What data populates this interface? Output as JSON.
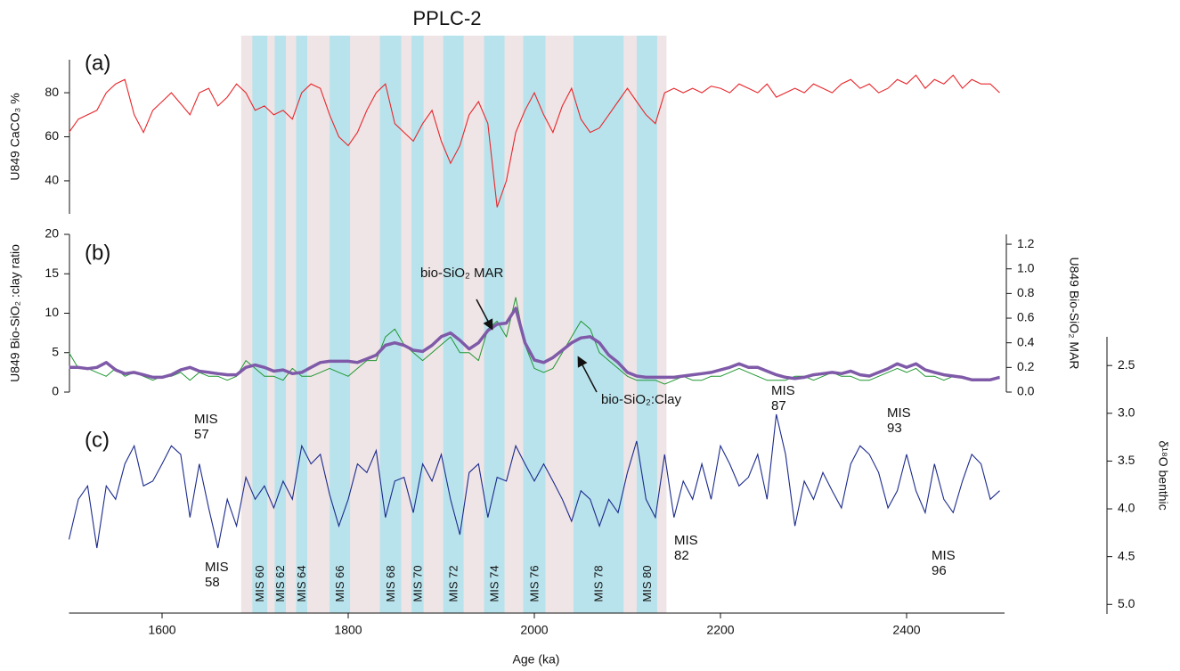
{
  "chart_data": {
    "type": "line",
    "title": "PPLC-2",
    "xlabel": "Age (ka)",
    "xlim": [
      1500,
      2500
    ],
    "xticks": [
      1600,
      1800,
      2000,
      2200,
      2400
    ],
    "x": [
      1500,
      1510,
      1520,
      1530,
      1540,
      1550,
      1560,
      1570,
      1580,
      1590,
      1600,
      1610,
      1620,
      1630,
      1640,
      1650,
      1660,
      1670,
      1680,
      1690,
      1700,
      1710,
      1720,
      1730,
      1740,
      1750,
      1760,
      1770,
      1780,
      1790,
      1800,
      1810,
      1820,
      1830,
      1840,
      1850,
      1860,
      1870,
      1880,
      1890,
      1900,
      1910,
      1920,
      1930,
      1940,
      1950,
      1960,
      1970,
      1980,
      1990,
      2000,
      2010,
      2020,
      2030,
      2040,
      2050,
      2060,
      2070,
      2080,
      2090,
      2100,
      2110,
      2120,
      2130,
      2140,
      2150,
      2160,
      2170,
      2180,
      2190,
      2200,
      2210,
      2220,
      2230,
      2240,
      2250,
      2260,
      2270,
      2280,
      2290,
      2300,
      2310,
      2320,
      2330,
      2340,
      2350,
      2360,
      2370,
      2380,
      2390,
      2400,
      2410,
      2420,
      2430,
      2440,
      2450,
      2460,
      2470,
      2480,
      2490,
      2500
    ],
    "shading": {
      "pplc": [
        1685,
        2142
      ],
      "pplc_color": "#efe5e6",
      "glacial_color": "#b9e3ec",
      "glacial": [
        [
          1697,
          1713
        ],
        [
          1721,
          1733
        ],
        [
          1744,
          1756
        ],
        [
          1780,
          1802
        ],
        [
          1834,
          1857
        ],
        [
          1868,
          1881
        ],
        [
          1902,
          1924
        ],
        [
          1946,
          1968
        ],
        [
          1988,
          2012
        ],
        [
          2042,
          2096
        ],
        [
          2110,
          2132
        ]
      ],
      "glacial_labels": [
        "MIS 60",
        "MIS 62",
        "MIS 64",
        "MIS 66",
        "MIS 68",
        "MIS 70",
        "MIS 72",
        "MIS 74",
        "MIS 76",
        "MIS 78",
        "MIS 80"
      ]
    },
    "panels": [
      {
        "label": "(a)",
        "ylabel": "U849 CaCO₃ %",
        "ylim": [
          25,
          95
        ],
        "yticks": [
          40,
          60,
          80
        ],
        "color": "#e8262b",
        "values": [
          62,
          68,
          70,
          72,
          80,
          84,
          86,
          70,
          62,
          72,
          76,
          80,
          75,
          70,
          80,
          82,
          74,
          78,
          84,
          80,
          72,
          74,
          70,
          72,
          68,
          80,
          84,
          82,
          70,
          60,
          56,
          62,
          72,
          80,
          84,
          66,
          62,
          58,
          66,
          72,
          58,
          48,
          56,
          70,
          76,
          66,
          28,
          40,
          62,
          72,
          80,
          70,
          62,
          74,
          82,
          68,
          62,
          64,
          70,
          76,
          82,
          76,
          70,
          66,
          80,
          82,
          80,
          82,
          80,
          83,
          82,
          80,
          84,
          82,
          80,
          84,
          78,
          80,
          82,
          80,
          84,
          82,
          80,
          84,
          86,
          82,
          84,
          80,
          82,
          86,
          84,
          88,
          82,
          86,
          84,
          88,
          82,
          86,
          84,
          84,
          80
        ]
      },
      {
        "label": "(b)",
        "ylabel": "U849 Bio-SiO₂ :clay ratio",
        "y2label": "U849 Bio-SiO₂ MAR",
        "ylim": [
          0,
          20
        ],
        "yticks": [
          0,
          5,
          10,
          15,
          20
        ],
        "y2lim": [
          0,
          1.28
        ],
        "y2ticks": [
          {
            "value": 0,
            "label": "0.0"
          },
          0.2,
          0.4,
          0.6,
          0.8,
          {
            "value": 1,
            "label": "1.0"
          },
          1.2
        ],
        "series": [
          {
            "name": "bio-SiO₂:Clay",
            "color": "#1e9630",
            "values": [
              5,
              3,
              3,
              2.5,
              2,
              3,
              2,
              2.5,
              2,
              1.5,
              2,
              2,
              2.5,
              1.5,
              2.5,
              2,
              2,
              1.5,
              2,
              4,
              3,
              2,
              2,
              1.5,
              3,
              2,
              2,
              2.5,
              3,
              2.5,
              2,
              3,
              4,
              4,
              7,
              8,
              6,
              5,
              4,
              5,
              6,
              7,
              5,
              5,
              4,
              8,
              9,
              7,
              12,
              6,
              3,
              2.5,
              3,
              5,
              7,
              9,
              8,
              5,
              4,
              3,
              2,
              1.5,
              1.5,
              1.5,
              1,
              1.5,
              2,
              1.5,
              1.5,
              2,
              2,
              2.5,
              3,
              2.5,
              2,
              1.5,
              1.5,
              1.5,
              2,
              2,
              1.5,
              2,
              2.5,
              2,
              2,
              1.5,
              1.5,
              2,
              2.5,
              3,
              2.5,
              3,
              2,
              2,
              1.5,
              2,
              2,
              1.5,
              1.5,
              1.5,
              2
            ]
          },
          {
            "name": "bio-SiO₂ MAR",
            "color": "#7f5aa8",
            "axis": "y2",
            "values": [
              0.2,
              0.2,
              0.19,
              0.2,
              0.24,
              0.18,
              0.15,
              0.16,
              0.14,
              0.12,
              0.12,
              0.14,
              0.18,
              0.2,
              0.17,
              0.16,
              0.15,
              0.14,
              0.14,
              0.2,
              0.22,
              0.2,
              0.17,
              0.18,
              0.15,
              0.16,
              0.2,
              0.24,
              0.25,
              0.25,
              0.25,
              0.24,
              0.27,
              0.3,
              0.38,
              0.4,
              0.38,
              0.34,
              0.33,
              0.38,
              0.45,
              0.48,
              0.42,
              0.35,
              0.4,
              0.5,
              0.55,
              0.56,
              0.68,
              0.4,
              0.26,
              0.24,
              0.28,
              0.34,
              0.4,
              0.44,
              0.45,
              0.4,
              0.3,
              0.24,
              0.16,
              0.13,
              0.12,
              0.12,
              0.12,
              0.12,
              0.13,
              0.14,
              0.15,
              0.16,
              0.18,
              0.2,
              0.23,
              0.2,
              0.2,
              0.17,
              0.14,
              0.12,
              0.11,
              0.12,
              0.14,
              0.15,
              0.16,
              0.15,
              0.17,
              0.14,
              0.13,
              0.16,
              0.19,
              0.23,
              0.2,
              0.23,
              0.18,
              0.16,
              0.14,
              0.13,
              0.12,
              0.1,
              0.1,
              0.1,
              0.12
            ]
          }
        ]
      },
      {
        "label": "(c)",
        "ylabel": "δ¹⁸O benthic",
        "ylim": [
          2.2,
          5.1
        ],
        "y_inverted": true,
        "yticks": [
          2.5,
          {
            "value": 3,
            "label": "3.0"
          },
          3.5,
          {
            "value": 4,
            "label": "4.0"
          },
          4.5,
          {
            "value": 5,
            "label": "5.0"
          }
        ],
        "color": "#1b2a8c",
        "values": [
          4.32,
          3.9,
          3.76,
          4.41,
          3.76,
          3.9,
          3.53,
          3.34,
          3.76,
          3.71,
          3.53,
          3.34,
          3.43,
          4.09,
          3.53,
          3.99,
          4.41,
          3.9,
          4.18,
          3.67,
          3.9,
          3.76,
          3.99,
          3.71,
          3.9,
          3.34,
          3.53,
          3.43,
          3.85,
          4.18,
          3.9,
          3.53,
          3.62,
          3.39,
          4.09,
          3.71,
          3.67,
          4.04,
          3.53,
          3.71,
          3.43,
          3.9,
          4.27,
          3.62,
          3.53,
          4.09,
          3.67,
          3.71,
          3.34,
          3.53,
          3.71,
          3.53,
          3.71,
          3.9,
          4.13,
          3.81,
          3.9,
          4.18,
          3.9,
          4.04,
          3.62,
          3.29,
          3.9,
          4.09,
          3.43,
          4.09,
          3.71,
          3.9,
          3.53,
          3.9,
          3.34,
          3.53,
          3.76,
          3.67,
          3.43,
          3.9,
          3.01,
          3.43,
          4.18,
          3.71,
          3.9,
          3.62,
          3.81,
          3.99,
          3.53,
          3.34,
          3.43,
          3.62,
          3.99,
          3.81,
          3.43,
          3.81,
          4.04,
          3.53,
          3.9,
          4.04,
          3.71,
          3.43,
          3.53,
          3.9,
          3.81
        ],
        "annotations": [
          "MIS 57",
          "MIS 58",
          "MIS 82",
          "MIS 87",
          "MIS 93",
          "MIS 96"
        ]
      }
    ]
  }
}
